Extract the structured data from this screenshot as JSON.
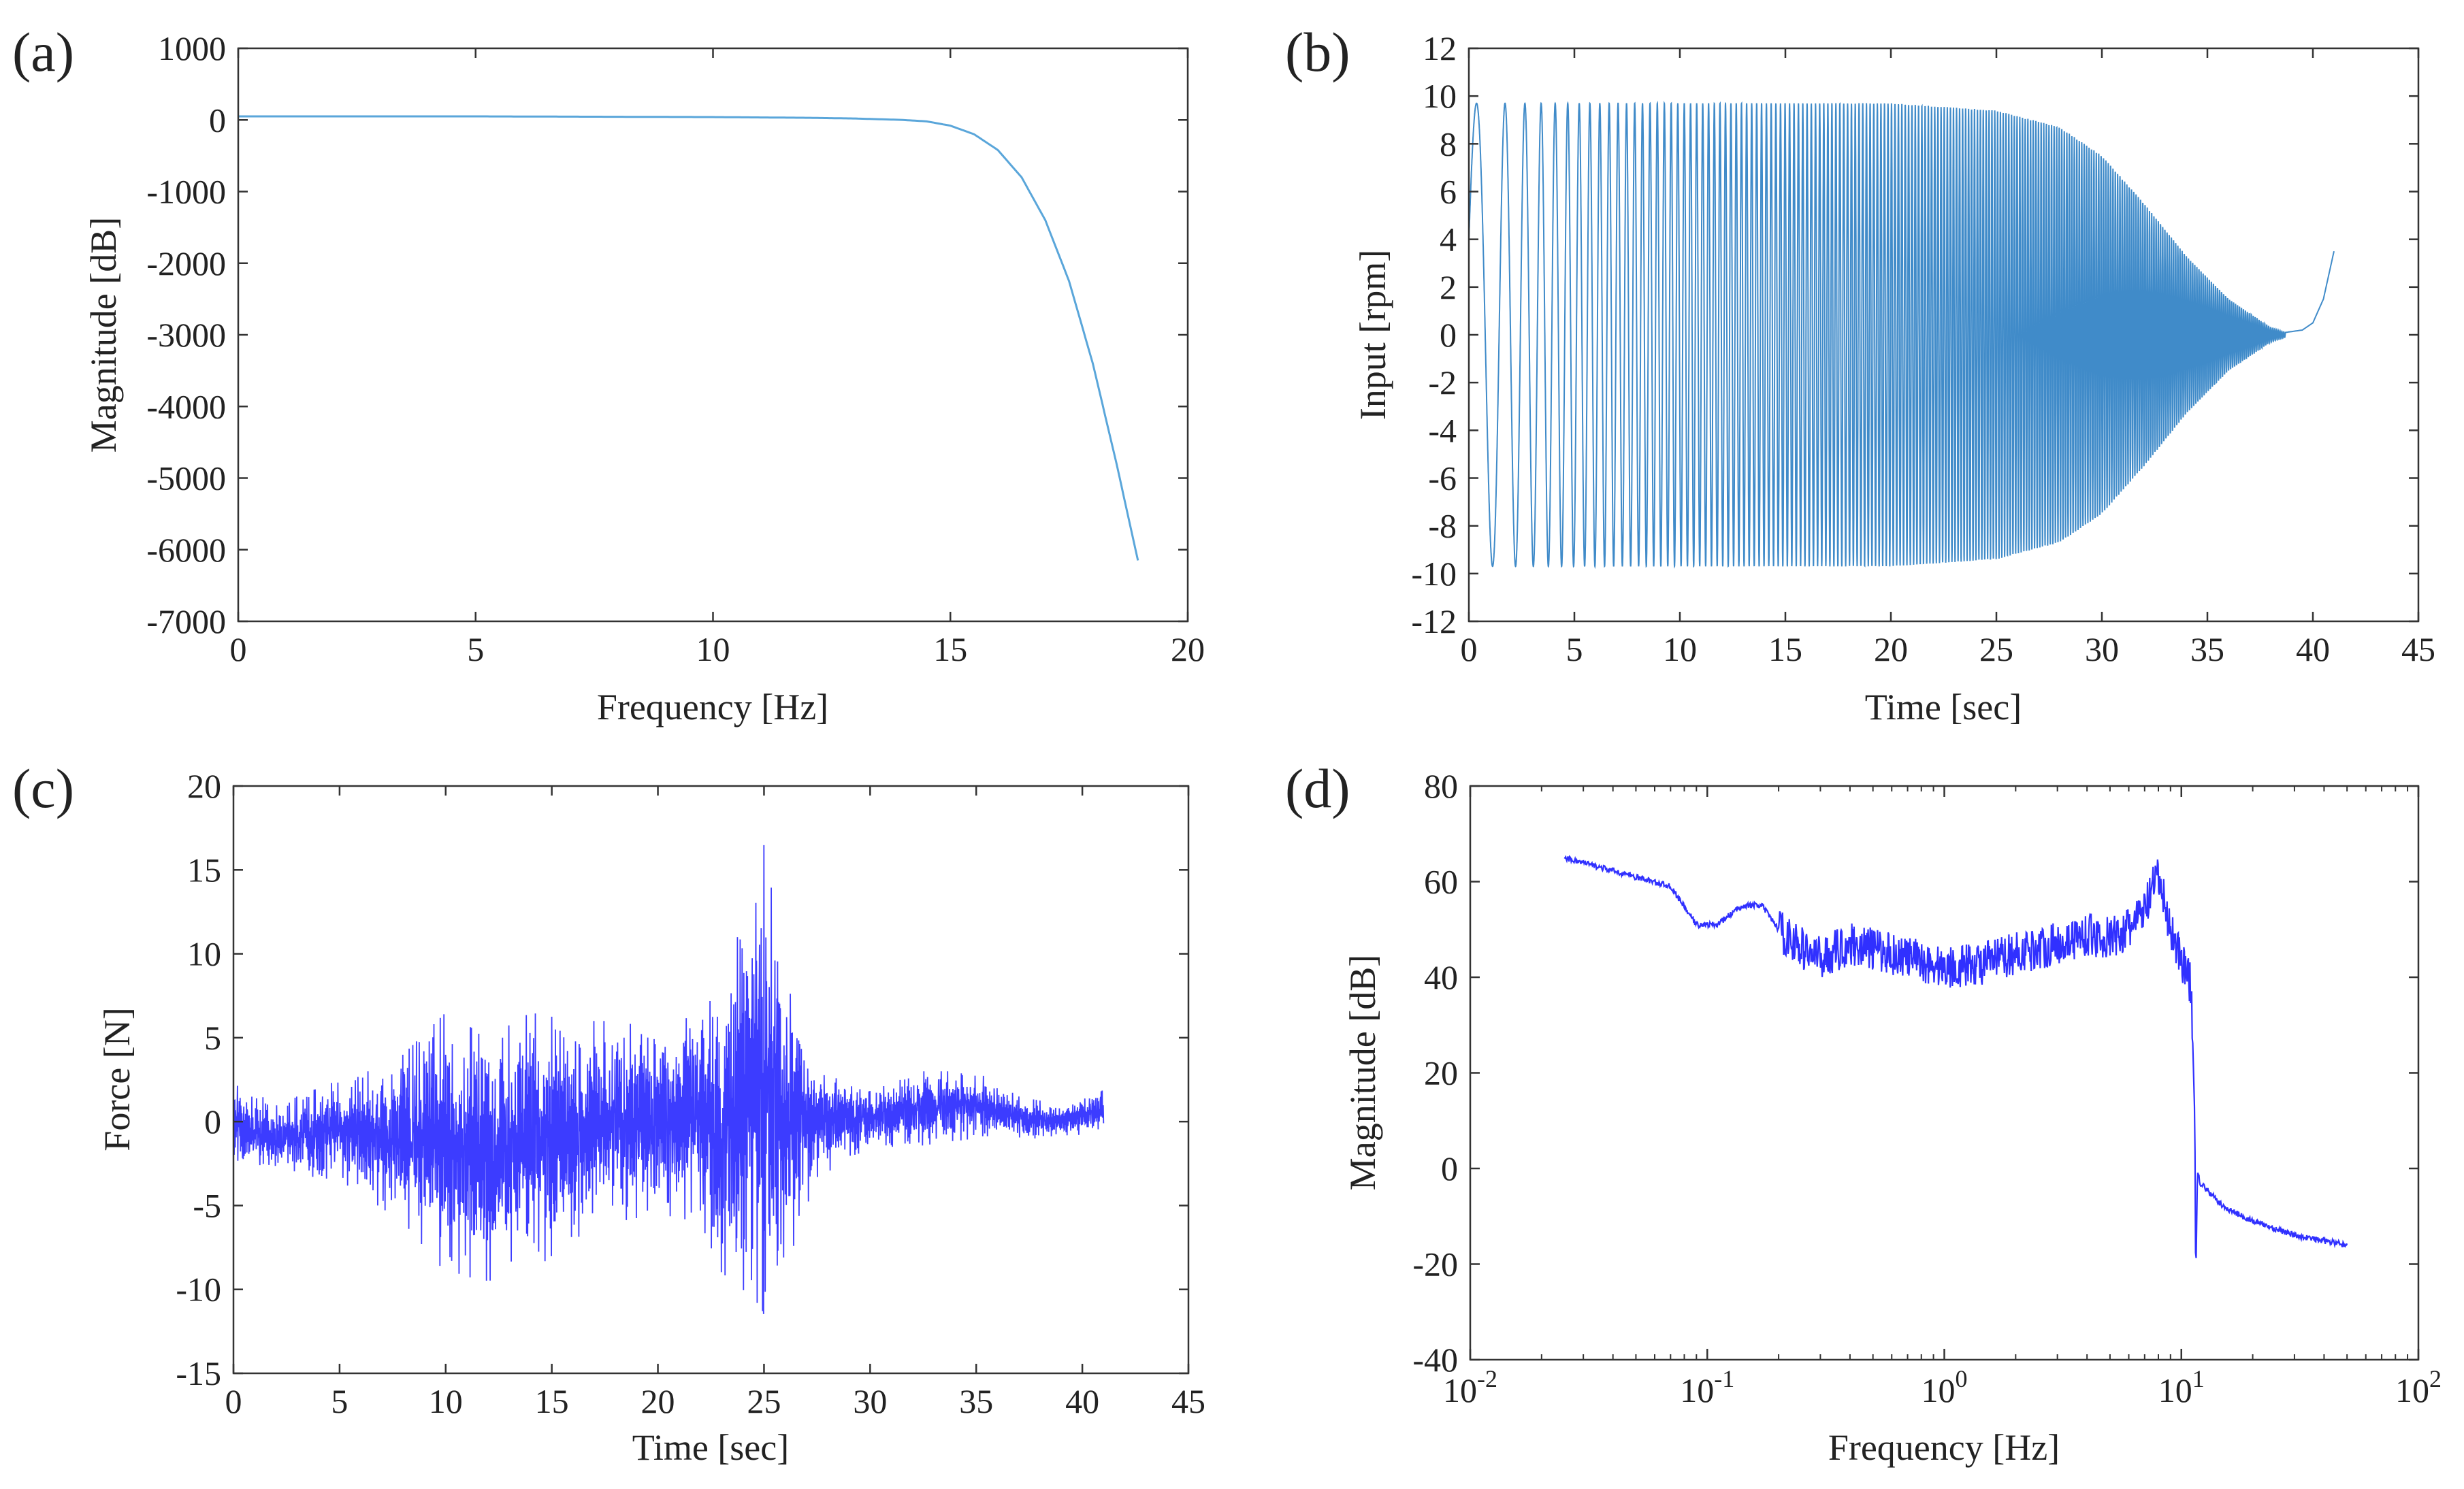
{
  "figure": {
    "panels": [
      "(a)",
      "(b)",
      "(c)",
      "(d)"
    ]
  },
  "chart_data": [
    {
      "id": "a",
      "type": "line",
      "panel_label": "(a)",
      "title": "",
      "xlabel": "Frequency [Hz]",
      "ylabel": "Magnitude [dB]",
      "xlim": [
        0,
        20
      ],
      "ylim": [
        -7000,
        1000
      ],
      "xticks": [
        0,
        5,
        10,
        15,
        20
      ],
      "yticks": [
        1000,
        0,
        -1000,
        -2000,
        -3000,
        -4000,
        -5000,
        -6000,
        -7000
      ],
      "grid": false,
      "color": "#5aa6da",
      "series": [
        {
          "name": "magnitude",
          "x": [
            0,
            5,
            10,
            12,
            13,
            14,
            14.5,
            15,
            15.5,
            16,
            16.5,
            17,
            17.5,
            18,
            18.5,
            19
          ],
          "y": [
            50,
            50,
            40,
            30,
            20,
            0,
            -20,
            -80,
            -200,
            -420,
            -800,
            -1400,
            -2250,
            -3400,
            -4800,
            -6300
          ]
        }
      ]
    },
    {
      "id": "b",
      "type": "line",
      "panel_label": "(b)",
      "title": "",
      "xlabel": "Time [sec]",
      "ylabel": "Input [rpm]",
      "xlim": [
        0,
        45
      ],
      "ylim": [
        -12,
        12
      ],
      "xticks": [
        0,
        5,
        10,
        15,
        20,
        25,
        30,
        35,
        40,
        45
      ],
      "yticks": [
        12,
        10,
        8,
        6,
        4,
        2,
        0,
        -2,
        -4,
        -6,
        -8,
        -10,
        -12
      ],
      "grid": false,
      "color": "#1f77c0",
      "series": [
        {
          "name": "chirp input",
          "description_points": {
            "start": [
              0,
              4
            ],
            "peak_amplitude": 9.7,
            "amplitude_envelope": {
              "t": [
                0,
                20,
                25,
                28,
                30,
                32,
                34,
                36,
                38,
                38.7
              ],
              "a": [
                9.7,
                9.7,
                9.4,
                8.7,
                7.5,
                5.5,
                3.3,
                1.5,
                0.3,
                0.1
              ]
            },
            "tail": {
              "t": [
                38.7,
                39.5,
                40,
                40.5,
                41
              ],
              "y": [
                0.1,
                0.2,
                0.5,
                1.5,
                3.5
              ]
            }
          }
        }
      ]
    },
    {
      "id": "c",
      "type": "line",
      "panel_label": "(c)",
      "title": "",
      "xlabel": "Time [sec]",
      "ylabel": "Force [N]",
      "xlim": [
        0,
        45
      ],
      "ylim": [
        -15,
        20
      ],
      "xticks": [
        0,
        5,
        10,
        15,
        20,
        25,
        30,
        35,
        40,
        45
      ],
      "yticks": [
        20,
        15,
        10,
        5,
        0,
        -5,
        -10,
        -15
      ],
      "grid": false,
      "color": "#1a1aff",
      "series": [
        {
          "name": "measured force",
          "envelope": {
            "t": [
              0,
              2,
              5,
              8,
              10,
              12,
              14,
              16,
              18,
              20,
              22,
              23,
              24,
              25,
              26,
              27,
              28,
              30,
              32,
              35,
              37,
              39,
              41
            ],
            "upper": [
              2.5,
              1,
              2.5,
              4,
              6.5,
              5,
              6.5,
              6,
              6,
              5.5,
              6.5,
              8,
              12,
              16.5,
              9,
              5,
              3,
              2,
              3,
              3,
              1.5,
              1,
              2
            ],
            "lower": [
              -3,
              -3,
              -3.5,
              -6,
              -9,
              -9.5,
              -9,
              -7,
              -6,
              -5.5,
              -6,
              -9,
              -10,
              -11.5,
              -9,
              -5,
              -3,
              -1.5,
              -1.5,
              -1,
              -1,
              -1,
              -0.5
            ]
          }
        }
      ]
    },
    {
      "id": "d",
      "type": "line",
      "panel_label": "(d)",
      "title": "",
      "xlabel": "Frequency [Hz]",
      "ylabel": "Magnitude [dB]",
      "xscale": "log",
      "xlim": [
        0.01,
        100
      ],
      "ylim": [
        -40,
        80
      ],
      "xtick_bases": [
        "10",
        "10",
        "10",
        "10",
        "10"
      ],
      "xtick_exps": [
        "-2",
        "-1",
        "0",
        "1",
        "2"
      ],
      "yticks": [
        80,
        60,
        40,
        20,
        0,
        -20,
        -40
      ],
      "grid": false,
      "color": "#1a1aff",
      "series": [
        {
          "name": "frequency response",
          "x": [
            0.025,
            0.07,
            0.09,
            0.11,
            0.14,
            0.17,
            0.2,
            0.25,
            0.3,
            0.4,
            0.6,
            1.0,
            1.5,
            2.0,
            3.0,
            4.0,
            5.0,
            6.0,
            7.0,
            7.5,
            8.0,
            9.0,
            10.0,
            11.0,
            11.4,
            11.5,
            11.7,
            12.0,
            15.0,
            20.0,
            30.0,
            50.0
          ],
          "y": [
            65,
            59,
            51,
            51,
            55,
            55,
            50,
            46,
            44,
            47,
            45,
            42,
            43,
            45,
            47,
            49,
            48,
            50,
            54,
            58,
            61,
            50,
            44,
            38,
            10,
            -24,
            0,
            -3,
            -8,
            -11,
            -14,
            -16
          ]
        }
      ]
    }
  ]
}
